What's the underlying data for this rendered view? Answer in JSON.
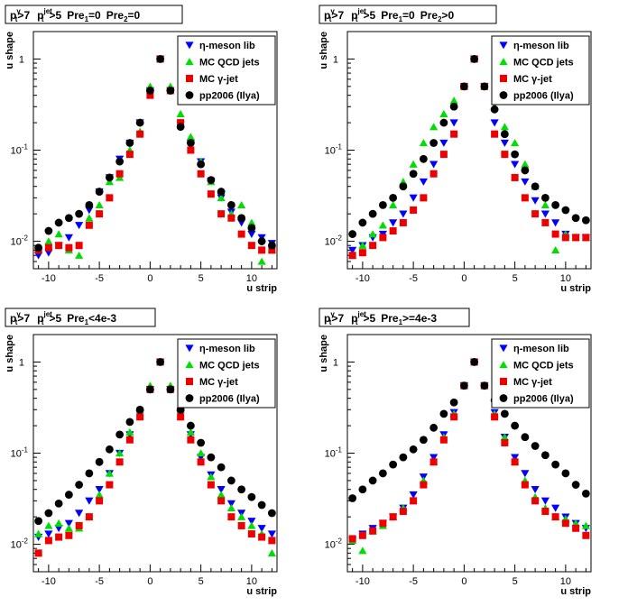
{
  "colors": {
    "eta": "#0000ff",
    "qcd": "#00dd00",
    "gamma": "#ee0000",
    "pp2006": "#000000"
  },
  "chart_data": [
    {
      "type": "scatter",
      "title_label": "p_T^γ>7 p_T^jet>5 Pre1=0 Pre2=0",
      "title_parts": {
        "pt": "p",
        "t": "t",
        "gamma_sup": "γ",
        "gt7": ">7",
        "jet_sup": "jet",
        "gt5": ">5",
        "cut1": "Pre",
        "cut1_sub": "1",
        "cut1_val": "=0",
        "cut2": "Pre",
        "cut2_sub": "2",
        "cut2_val": "=0"
      },
      "xlabel": "u strip",
      "ylabel": "u shape",
      "xlim": [
        -11.5,
        12.5
      ],
      "ylim": [
        0.005,
        2.0
      ],
      "yscale": "log",
      "xticks": [
        "-10",
        "-5",
        "0",
        "5",
        "10"
      ],
      "yticks": [
        "10^-2",
        "10^-1",
        "1"
      ],
      "legend": [
        "η-meson lib",
        "MC QCD jets",
        "MC γ-jet",
        "pp2006 (Ilya)"
      ],
      "series": [
        {
          "name": "η-meson lib",
          "marker": "triangle-down",
          "x": [
            -11,
            -10,
            -9,
            -8,
            -7,
            -6,
            -5,
            -4,
            -3,
            -2,
            -1,
            0,
            1,
            2,
            3,
            4,
            5,
            6,
            7,
            8,
            9,
            10,
            11,
            12
          ],
          "y": [
            0.007,
            0.0075,
            0.009,
            0.011,
            0.015,
            0.022,
            0.035,
            0.05,
            0.08,
            0.12,
            0.2,
            0.45,
            1.0,
            0.45,
            0.19,
            0.12,
            0.075,
            0.046,
            0.03,
            0.021,
            0.016,
            0.012,
            0.011,
            0.0095
          ]
        },
        {
          "name": "MC QCD jets",
          "marker": "triangle-up",
          "x": [
            -11,
            -10,
            -9,
            -8,
            -7,
            -6,
            -5,
            -4,
            -3,
            -2,
            -1,
            0,
            1,
            2,
            3,
            4,
            5,
            6,
            7,
            8,
            9,
            10,
            11,
            12
          ],
          "y": [
            0.008,
            0.01,
            0.012,
            0.008,
            0.007,
            0.018,
            0.025,
            0.045,
            0.05,
            0.1,
            0.16,
            0.5,
            1.0,
            0.5,
            0.25,
            0.14,
            0.075,
            0.045,
            0.03,
            0.02,
            0.025,
            0.016,
            0.006,
            0.008
          ]
        },
        {
          "name": "MC γ-jet",
          "marker": "square",
          "x": [
            -11,
            -10,
            -9,
            -8,
            -7,
            -6,
            -5,
            -4,
            -3,
            -2,
            -1,
            0,
            1,
            2,
            3,
            4,
            5,
            6,
            7,
            8,
            9,
            10,
            11,
            12
          ],
          "y": [
            0.008,
            0.0085,
            0.009,
            0.0085,
            0.009,
            0.015,
            0.02,
            0.03,
            0.055,
            0.09,
            0.15,
            0.4,
            1.0,
            0.45,
            0.2,
            0.1,
            0.055,
            0.033,
            0.02,
            0.018,
            0.012,
            0.009,
            0.008,
            0.008
          ]
        },
        {
          "name": "pp2006 (Ilya)",
          "marker": "circle",
          "x": [
            -11,
            -10,
            -9,
            -8,
            -7,
            -6,
            -5,
            -4,
            -3,
            -2,
            -1,
            0,
            1,
            2,
            3,
            4,
            5,
            6,
            7,
            8,
            9,
            10,
            11,
            12
          ],
          "y": [
            0.0085,
            0.013,
            0.016,
            0.018,
            0.02,
            0.025,
            0.035,
            0.05,
            0.075,
            0.12,
            0.2,
            0.45,
            1.0,
            0.45,
            0.18,
            0.12,
            0.07,
            0.047,
            0.035,
            0.025,
            0.018,
            0.014,
            0.01,
            0.009
          ]
        }
      ]
    },
    {
      "type": "scatter",
      "title_label": "p_T^γ>7 p_T^jet>5 Pre1=0 Pre2>0",
      "title_parts": {
        "pt": "p",
        "t": "t",
        "gamma_sup": "γ",
        "gt7": ">7",
        "jet_sup": "jet",
        "gt5": ">5",
        "cut1": "Pre",
        "cut1_sub": "1",
        "cut1_val": "=0",
        "cut2": "Pre",
        "cut2_sub": "2",
        "cut2_val": ">0"
      },
      "xlabel": "u strip",
      "ylabel": "u shape",
      "xlim": [
        -11.5,
        12.5
      ],
      "ylim": [
        0.005,
        2.0
      ],
      "yscale": "log",
      "xticks": [
        "-10",
        "-5",
        "0",
        "5",
        "10"
      ],
      "yticks": [
        "10^-2",
        "10^-1",
        "1"
      ],
      "legend": [
        "η-meson lib",
        "MC QCD jets",
        "MC γ-jet",
        "pp2006 (Ilya)"
      ],
      "series": [
        {
          "name": "η-meson lib",
          "marker": "triangle-down",
          "x": [
            -11,
            -10,
            -9,
            -8,
            -7,
            -6,
            -5,
            -4,
            -3,
            -2,
            -1,
            0,
            1,
            2,
            3,
            4,
            5,
            6,
            7,
            8,
            9,
            10,
            11,
            12
          ],
          "y": [
            0.008,
            0.009,
            0.011,
            0.012,
            0.016,
            0.02,
            0.03,
            0.045,
            0.07,
            0.12,
            0.2,
            0.5,
            1.0,
            0.5,
            0.2,
            0.12,
            0.07,
            0.045,
            0.028,
            0.02,
            0.016,
            0.012,
            0.011,
            0.011
          ]
        },
        {
          "name": "MC QCD jets",
          "marker": "triangle-up",
          "x": [
            -11,
            -10,
            -9,
            -8,
            -7,
            -6,
            -5,
            -4,
            -3,
            -2,
            -1,
            0,
            1,
            2,
            3,
            4,
            5,
            6,
            7,
            8,
            9,
            10,
            11,
            12
          ],
          "y": [
            0.007,
            0.009,
            0.012,
            0.015,
            0.025,
            0.045,
            0.07,
            0.12,
            0.18,
            0.25,
            0.35,
            0.5,
            1.0,
            0.5,
            0.3,
            0.18,
            0.12,
            0.07,
            0.04,
            0.025,
            0.008,
            0.012,
            0.011,
            0.011
          ]
        },
        {
          "name": "MC γ-jet",
          "marker": "square",
          "x": [
            -11,
            -10,
            -9,
            -8,
            -7,
            -6,
            -5,
            -4,
            -3,
            -2,
            -1,
            0,
            1,
            2,
            3,
            4,
            5,
            6,
            7,
            8,
            9,
            10,
            11,
            12
          ],
          "y": [
            0.007,
            0.0075,
            0.009,
            0.011,
            0.013,
            0.016,
            0.022,
            0.03,
            0.055,
            0.09,
            0.15,
            0.5,
            1.0,
            0.5,
            0.15,
            0.09,
            0.05,
            0.03,
            0.02,
            0.016,
            0.012,
            0.011,
            0.011,
            0.011
          ]
        },
        {
          "name": "pp2006 (Ilya)",
          "marker": "circle",
          "x": [
            -11,
            -10,
            -9,
            -8,
            -7,
            -6,
            -5,
            -4,
            -3,
            -2,
            -1,
            0,
            1,
            2,
            3,
            4,
            5,
            6,
            7,
            8,
            9,
            10,
            11,
            12
          ],
          "y": [
            0.012,
            0.016,
            0.02,
            0.025,
            0.03,
            0.04,
            0.055,
            0.08,
            0.12,
            0.2,
            0.3,
            0.5,
            1.0,
            0.5,
            0.28,
            0.15,
            0.09,
            0.06,
            0.04,
            0.03,
            0.025,
            0.022,
            0.018,
            0.017
          ]
        }
      ]
    },
    {
      "type": "scatter",
      "title_label": "p_T^γ>7 p_T^jet>5 Pre1<4e-3",
      "title_parts": {
        "pt": "p",
        "t": "t",
        "gamma_sup": "γ",
        "gt7": ">7",
        "jet_sup": "jet",
        "gt5": ">5",
        "cut1": "Pre",
        "cut1_sub": "1",
        "cut1_val": "<4e-3",
        "cut2": "",
        "cut2_sub": "",
        "cut2_val": ""
      },
      "xlabel": "u strip",
      "ylabel": "u shape",
      "xlim": [
        -11.5,
        12.5
      ],
      "ylim": [
        0.005,
        2.0
      ],
      "yscale": "log",
      "xticks": [
        "-10",
        "-5",
        "0",
        "5",
        "10"
      ],
      "yticks": [
        "10^-2",
        "10^-1",
        "1"
      ],
      "legend": [
        "η-meson lib",
        "MC QCD jets",
        "MC γ-jet",
        "pp2006 (Ilya)"
      ],
      "series": [
        {
          "name": "η-meson lib",
          "marker": "triangle-down",
          "x": [
            -11,
            -10,
            -9,
            -8,
            -7,
            -6,
            -5,
            -4,
            -3,
            -2,
            -1,
            0,
            1,
            2,
            3,
            4,
            5,
            6,
            7,
            8,
            9,
            10,
            11,
            12
          ],
          "y": [
            0.012,
            0.013,
            0.015,
            0.017,
            0.022,
            0.03,
            0.04,
            0.06,
            0.1,
            0.16,
            0.27,
            0.5,
            1.0,
            0.5,
            0.27,
            0.16,
            0.09,
            0.058,
            0.04,
            0.028,
            0.022,
            0.018,
            0.015,
            0.013
          ]
        },
        {
          "name": "MC QCD jets",
          "marker": "triangle-up",
          "x": [
            -11,
            -10,
            -9,
            -8,
            -7,
            -6,
            -5,
            -4,
            -3,
            -2,
            -1,
            0,
            1,
            2,
            3,
            4,
            5,
            6,
            7,
            8,
            9,
            10,
            11,
            12
          ],
          "y": [
            0.013,
            0.016,
            0.017,
            0.015,
            0.015,
            0.02,
            0.035,
            0.06,
            0.1,
            0.17,
            0.3,
            0.55,
            1.0,
            0.55,
            0.3,
            0.17,
            0.1,
            0.055,
            0.035,
            0.025,
            0.02,
            0.016,
            0.013,
            0.008
          ]
        },
        {
          "name": "MC γ-jet",
          "marker": "square",
          "x": [
            -11,
            -10,
            -9,
            -8,
            -7,
            -6,
            -5,
            -4,
            -3,
            -2,
            -1,
            0,
            1,
            2,
            3,
            4,
            5,
            6,
            7,
            8,
            9,
            10,
            11,
            12
          ],
          "y": [
            0.008,
            0.011,
            0.012,
            0.0125,
            0.016,
            0.02,
            0.03,
            0.045,
            0.08,
            0.14,
            0.25,
            0.5,
            1.0,
            0.5,
            0.25,
            0.14,
            0.08,
            0.045,
            0.03,
            0.02,
            0.016,
            0.013,
            0.012,
            0.011
          ]
        },
        {
          "name": "pp2006 (Ilya)",
          "marker": "circle",
          "x": [
            -11,
            -10,
            -9,
            -8,
            -7,
            -6,
            -5,
            -4,
            -3,
            -2,
            -1,
            0,
            1,
            2,
            3,
            4,
            5,
            6,
            7,
            8,
            9,
            10,
            11,
            12
          ],
          "y": [
            0.018,
            0.022,
            0.028,
            0.035,
            0.045,
            0.06,
            0.08,
            0.11,
            0.16,
            0.22,
            0.3,
            0.5,
            1.0,
            0.5,
            0.3,
            0.2,
            0.13,
            0.09,
            0.07,
            0.05,
            0.04,
            0.033,
            0.027,
            0.022
          ]
        }
      ]
    },
    {
      "type": "scatter",
      "title_label": "p_T^γ>7 p_T^jet>5 Pre1>=4e-3",
      "title_parts": {
        "pt": "p",
        "t": "t",
        "gamma_sup": "γ",
        "gt7": ">7",
        "jet_sup": "jet",
        "gt5": ">5",
        "cut1": "Pre",
        "cut1_sub": "1",
        "cut1_val": ">=4e-3",
        "cut2": "",
        "cut2_sub": "",
        "cut2_val": ""
      },
      "xlabel": "u strip",
      "ylabel": "u shape",
      "xlim": [
        -11.5,
        12.5
      ],
      "ylim": [
        0.005,
        2.0
      ],
      "yscale": "log",
      "xticks": [
        "-10",
        "-5",
        "0",
        "5",
        "10"
      ],
      "yticks": [
        "10^-2",
        "10^-1",
        "1"
      ],
      "legend": [
        "η-meson lib",
        "MC QCD jets",
        "MC γ-jet",
        "pp2006 (Ilya)"
      ],
      "series": [
        {
          "name": "η-meson lib",
          "marker": "triangle-down",
          "x": [
            -11,
            -10,
            -9,
            -8,
            -7,
            -6,
            -5,
            -4,
            -3,
            -2,
            -1,
            0,
            1,
            2,
            3,
            4,
            5,
            6,
            7,
            8,
            9,
            10,
            11,
            12
          ],
          "y": [
            0.011,
            0.013,
            0.015,
            0.017,
            0.02,
            0.025,
            0.035,
            0.055,
            0.09,
            0.16,
            0.28,
            0.55,
            1.0,
            0.55,
            0.28,
            0.15,
            0.09,
            0.06,
            0.04,
            0.03,
            0.025,
            0.02,
            0.017,
            0.015
          ]
        },
        {
          "name": "MC QCD jets",
          "marker": "triangle-up",
          "x": [
            -11,
            -10,
            -9,
            -8,
            -7,
            -6,
            -5,
            -4,
            -3,
            -2,
            -1,
            0,
            1,
            2,
            3,
            4,
            5,
            6,
            7,
            8,
            9,
            10,
            11,
            12
          ],
          "y": [
            0.011,
            0.0085,
            0.014,
            0.016,
            0.02,
            0.025,
            0.03,
            0.05,
            0.08,
            0.15,
            0.27,
            0.55,
            1.0,
            0.55,
            0.27,
            0.15,
            0.08,
            0.05,
            0.033,
            0.025,
            0.02,
            0.019,
            0.017,
            0.016
          ]
        },
        {
          "name": "MC γ-jet",
          "marker": "square",
          "x": [
            -11,
            -10,
            -9,
            -8,
            -7,
            -6,
            -5,
            -4,
            -3,
            -2,
            -1,
            0,
            1,
            2,
            3,
            4,
            5,
            6,
            7,
            8,
            9,
            10,
            11,
            12
          ],
          "y": [
            0.0115,
            0.0125,
            0.014,
            0.017,
            0.02,
            0.023,
            0.03,
            0.045,
            0.08,
            0.14,
            0.25,
            0.55,
            1.0,
            0.55,
            0.25,
            0.13,
            0.08,
            0.045,
            0.03,
            0.023,
            0.02,
            0.017,
            0.015,
            0.0125
          ]
        },
        {
          "name": "pp2006 (Ilya)",
          "marker": "circle",
          "x": [
            -11,
            -10,
            -9,
            -8,
            -7,
            -6,
            -5,
            -4,
            -3,
            -2,
            -1,
            0,
            1,
            2,
            3,
            4,
            5,
            6,
            7,
            8,
            9,
            10,
            11,
            12
          ],
          "y": [
            0.032,
            0.04,
            0.05,
            0.06,
            0.075,
            0.09,
            0.11,
            0.14,
            0.19,
            0.27,
            0.36,
            0.55,
            1.0,
            0.55,
            0.38,
            0.27,
            0.2,
            0.15,
            0.12,
            0.095,
            0.075,
            0.06,
            0.045,
            0.036
          ]
        }
      ]
    }
  ]
}
